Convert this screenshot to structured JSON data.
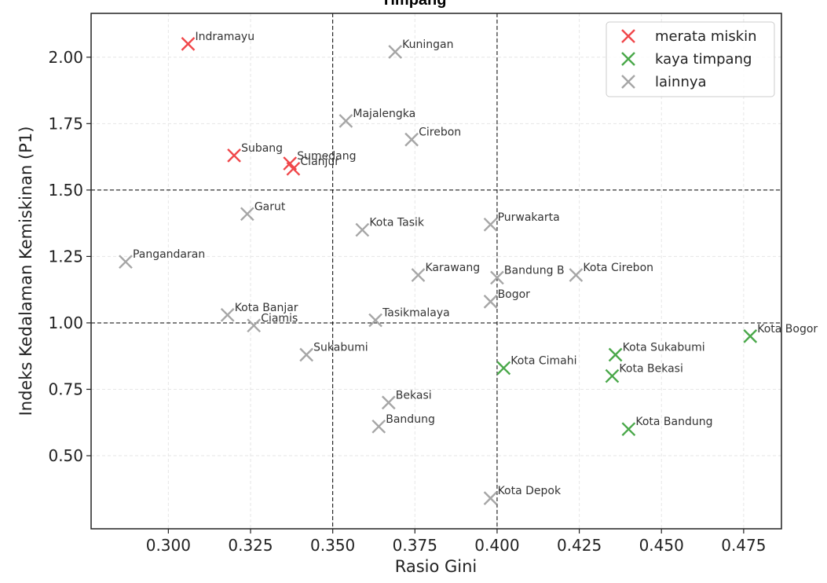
{
  "chart_data": {
    "type": "scatter",
    "title": "Timpang",
    "xlabel": "Rasio Gini",
    "ylabel": "Indeks Kedalaman Kemiskinan (P1)",
    "xlim": [
      0.2765,
      0.4865
    ],
    "ylim": [
      0.225,
      2.165
    ],
    "xticks": [
      "0.300",
      "0.325",
      "0.350",
      "0.375",
      "0.400",
      "0.425",
      "0.450",
      "0.475"
    ],
    "yticks": [
      "0.50",
      "0.75",
      "1.00",
      "1.25",
      "1.50",
      "1.75",
      "2.00"
    ],
    "xtick_values": [
      0.3,
      0.325,
      0.35,
      0.375,
      0.4,
      0.425,
      0.45,
      0.475
    ],
    "ytick_values": [
      0.5,
      0.75,
      1.0,
      1.25,
      1.5,
      1.75,
      2.0
    ],
    "reference_lines": {
      "x": [
        0.35,
        0.4
      ],
      "y": [
        1.0,
        1.5
      ]
    },
    "grid": true,
    "legend_position": "top-right",
    "series": [
      {
        "name": "merata miskin",
        "color": "#f0474a",
        "points": [
          {
            "label": "Indramayu",
            "x": 0.306,
            "y": 2.05
          },
          {
            "label": "Subang",
            "x": 0.32,
            "y": 1.63
          },
          {
            "label": "Sumedang",
            "x": 0.337,
            "y": 1.6
          },
          {
            "label": "Cianjur",
            "x": 0.338,
            "y": 1.58
          }
        ]
      },
      {
        "name": "kaya timpang",
        "color": "#4aa84a",
        "points": [
          {
            "label": "Kota Cimahi",
            "x": 0.402,
            "y": 0.83
          },
          {
            "label": "Kota Sukabumi",
            "x": 0.436,
            "y": 0.88
          },
          {
            "label": "Kota Bekasi",
            "x": 0.435,
            "y": 0.8
          },
          {
            "label": "Kota Bogor",
            "x": 0.477,
            "y": 0.95
          },
          {
            "label": "Kota Bandung",
            "x": 0.44,
            "y": 0.6
          }
        ]
      },
      {
        "name": "lainnya",
        "color": "#a6a6a6",
        "points": [
          {
            "label": "Kuningan",
            "x": 0.369,
            "y": 2.02
          },
          {
            "label": "Majalengka",
            "x": 0.354,
            "y": 1.76
          },
          {
            "label": "Cirebon",
            "x": 0.374,
            "y": 1.69
          },
          {
            "label": "Garut",
            "x": 0.324,
            "y": 1.41
          },
          {
            "label": "Kota Tasik",
            "x": 0.359,
            "y": 1.35
          },
          {
            "label": "Purwakarta",
            "x": 0.398,
            "y": 1.37
          },
          {
            "label": "Pangandaran",
            "x": 0.287,
            "y": 1.23
          },
          {
            "label": "Karawang",
            "x": 0.376,
            "y": 1.18
          },
          {
            "label": "Bandung B",
            "x": 0.4,
            "y": 1.17
          },
          {
            "label": "Kota Cirebon",
            "x": 0.424,
            "y": 1.18
          },
          {
            "label": "Bogor",
            "x": 0.398,
            "y": 1.08
          },
          {
            "label": "Kota Banjar",
            "x": 0.318,
            "y": 1.03
          },
          {
            "label": "Ciamis",
            "x": 0.326,
            "y": 0.99
          },
          {
            "label": "Tasikmalaya",
            "x": 0.363,
            "y": 1.01
          },
          {
            "label": "Sukabumi",
            "x": 0.342,
            "y": 0.88
          },
          {
            "label": "Bekasi",
            "x": 0.367,
            "y": 0.7
          },
          {
            "label": "Bandung",
            "x": 0.364,
            "y": 0.61
          },
          {
            "label": "Kota Depok",
            "x": 0.398,
            "y": 0.34
          }
        ]
      }
    ]
  }
}
